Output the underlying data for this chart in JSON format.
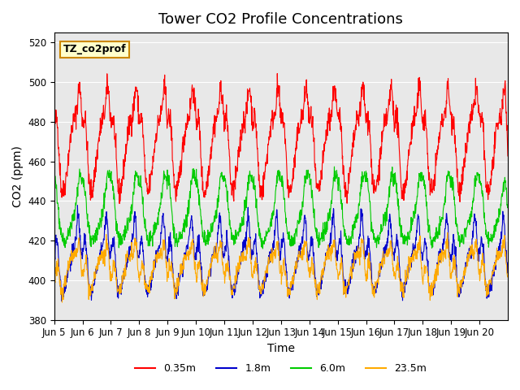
{
  "title": "Tower CO2 Profile Concentrations",
  "xlabel": "Time",
  "ylabel": "CO2 (ppm)",
  "ylim": [
    380,
    525
  ],
  "yticks": [
    380,
    400,
    420,
    440,
    460,
    480,
    500,
    520
  ],
  "legend_label": "TZ_co2prof",
  "series_labels": [
    "0.35m",
    "1.8m",
    "6.0m",
    "23.5m"
  ],
  "series_colors": [
    "#ff0000",
    "#0000cc",
    "#00cc00",
    "#ffaa00"
  ],
  "background_color": "#ffffff",
  "plot_bg_color": "#e8e8e8",
  "xtick_labels": [
    "Jun 5",
    "Jun 6",
    "Jun 7",
    "Jun 8",
    "Jun 9",
    "Jun 10",
    "Jun 11",
    "Jun 12",
    "Jun 13",
    "Jun 14",
    "Jun 15",
    "Jun 16",
    "Jun 17",
    "Jun 18",
    "Jun 19",
    "Jun 20"
  ],
  "n_days": 16,
  "title_fontsize": 13,
  "axis_label_fontsize": 10,
  "tick_fontsize": 8.5
}
